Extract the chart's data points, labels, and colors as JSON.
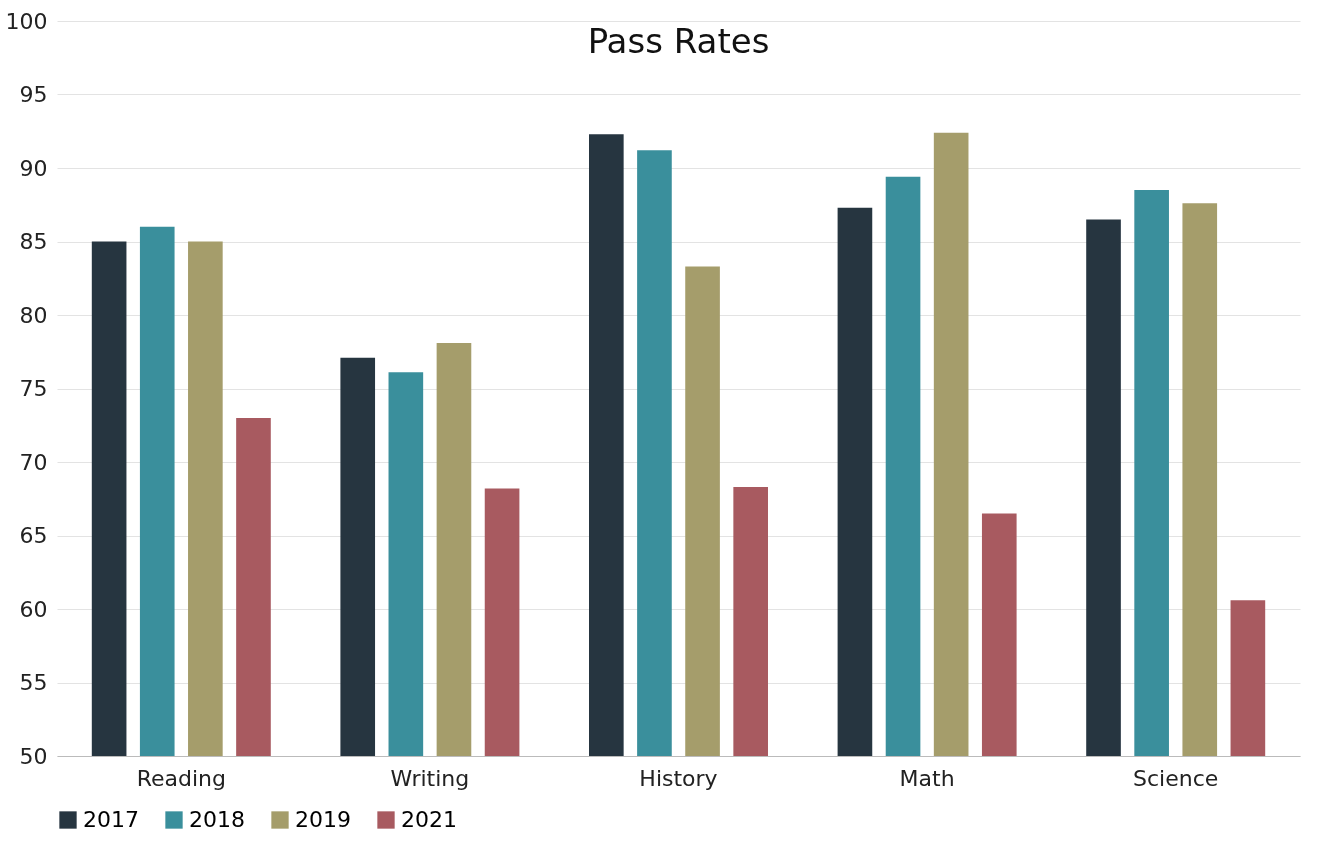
{
  "chart_data": {
    "type": "bar",
    "title": "Pass Rates",
    "categories": [
      "Reading",
      "Writing",
      "History",
      "Math",
      "Science"
    ],
    "series": [
      {
        "name": "2017",
        "color": "#263540",
        "values": [
          85,
          77.1,
          92.3,
          87.3,
          86.5
        ]
      },
      {
        "name": "2018",
        "color": "#3a8f9c",
        "values": [
          86,
          76.1,
          91.2,
          89.4,
          88.5
        ]
      },
      {
        "name": "2019",
        "color": "#a59d6b",
        "values": [
          85,
          78.1,
          83.3,
          92.4,
          87.6
        ]
      },
      {
        "name": "2021",
        "color": "#a85a60",
        "values": [
          73,
          68.2,
          68.3,
          66.5,
          60.6
        ]
      }
    ],
    "ylim": [
      50,
      100
    ],
    "yticks": [
      50,
      55,
      60,
      65,
      70,
      75,
      80,
      85,
      90,
      95,
      100
    ],
    "grid": "y",
    "legend": "bottom"
  }
}
